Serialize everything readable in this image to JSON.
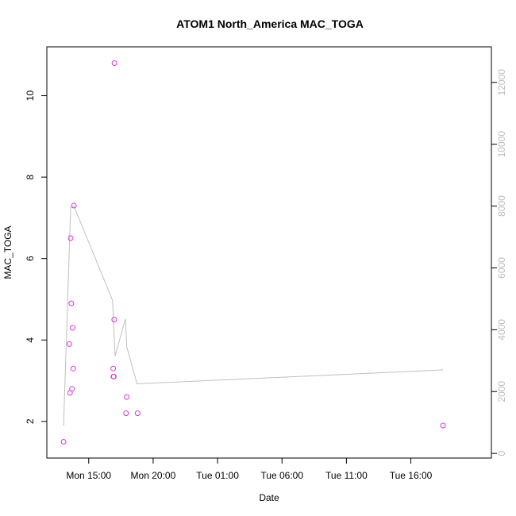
{
  "chart_data": {
    "type": "scatter",
    "title": "ATOM1 North_America MAC_TOGA",
    "xlabel": "Date",
    "ylabel": "MAC_TOGA",
    "grid": false,
    "x_ticks": [
      "Mon 15:00",
      "Mon 20:00",
      "Tue 01:00",
      "Tue 06:00",
      "Tue 11:00",
      "Tue 16:00"
    ],
    "x_tick_hours": [
      15,
      20,
      25,
      30,
      35,
      40
    ],
    "xlim_hours": [
      11.75,
      46.25
    ],
    "ylim": [
      1.1,
      11.2
    ],
    "y_ticks": [
      2,
      4,
      6,
      8,
      10
    ],
    "y2lim": [
      -150,
      13150
    ],
    "y2_ticks": [
      0,
      2000,
      4000,
      6000,
      8000,
      10000,
      12000
    ],
    "series": [
      {
        "kind": "points",
        "axis": "left",
        "color": "#e033e0",
        "hours": [
          13.05,
          13.5,
          13.55,
          13.6,
          13.65,
          13.7,
          13.75,
          13.8,
          13.85,
          16.9,
          16.92,
          16.95,
          16.98,
          17.0,
          17.9,
          17.95,
          18.8,
          42.5
        ],
        "values": [
          1.5,
          3.9,
          2.7,
          6.5,
          4.9,
          2.8,
          4.3,
          3.3,
          7.3,
          3.3,
          3.1,
          3.1,
          4.5,
          10.8,
          2.2,
          2.6,
          2.2,
          1.9
        ]
      },
      {
        "kind": "line",
        "axis": "right",
        "color": "#c0c0c0",
        "hours": [
          13.05,
          13.6,
          13.85,
          16.85,
          17.05,
          17.85,
          17.95,
          18.75,
          42.5
        ],
        "values": [
          900,
          7950,
          8000,
          4950,
          3150,
          4350,
          3450,
          2250,
          2700
        ]
      }
    ]
  }
}
